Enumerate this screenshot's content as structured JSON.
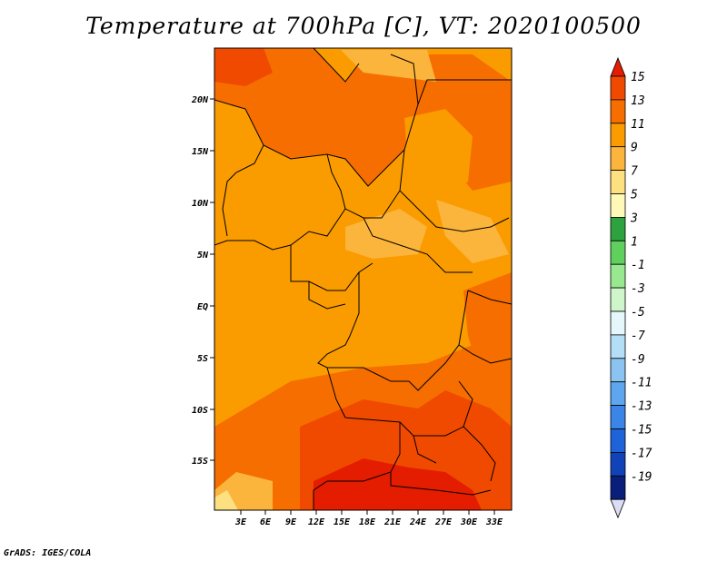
{
  "title": "Temperature at 700hPa [C], VT: 2020100500",
  "credit": "GrADS: IGES/COLA",
  "map": {
    "lat_ticks": [
      "20N",
      "15N",
      "10N",
      "5N",
      "EQ",
      "5S",
      "10S",
      "15S"
    ],
    "lon_ticks": [
      "3E",
      "6E",
      "9E",
      "12E",
      "15E",
      "18E",
      "21E",
      "24E",
      "27E",
      "30E",
      "33E"
    ]
  },
  "colorbar": {
    "labels": [
      "15",
      "13",
      "11",
      "9",
      "7",
      "5",
      "3",
      "1",
      "-1",
      "-3",
      "-5",
      "-7",
      "-9",
      "-11",
      "-13",
      "-15",
      "-17",
      "-19"
    ],
    "colors": [
      "#e41c00",
      "#f04a00",
      "#f76e00",
      "#fa9c00",
      "#fcb53c",
      "#fde080",
      "#fff9b8",
      "#2ea23e",
      "#5fcf5e",
      "#98e88f",
      "#cff6cb",
      "#e6f7fb",
      "#b3def6",
      "#8bc4f1",
      "#5ea7ee",
      "#3a85e6",
      "#1e64d8",
      "#1143b8",
      "#0a1f7a",
      "#dcdcf4"
    ]
  },
  "style": {
    "warm_bg": "#fa9c00"
  }
}
